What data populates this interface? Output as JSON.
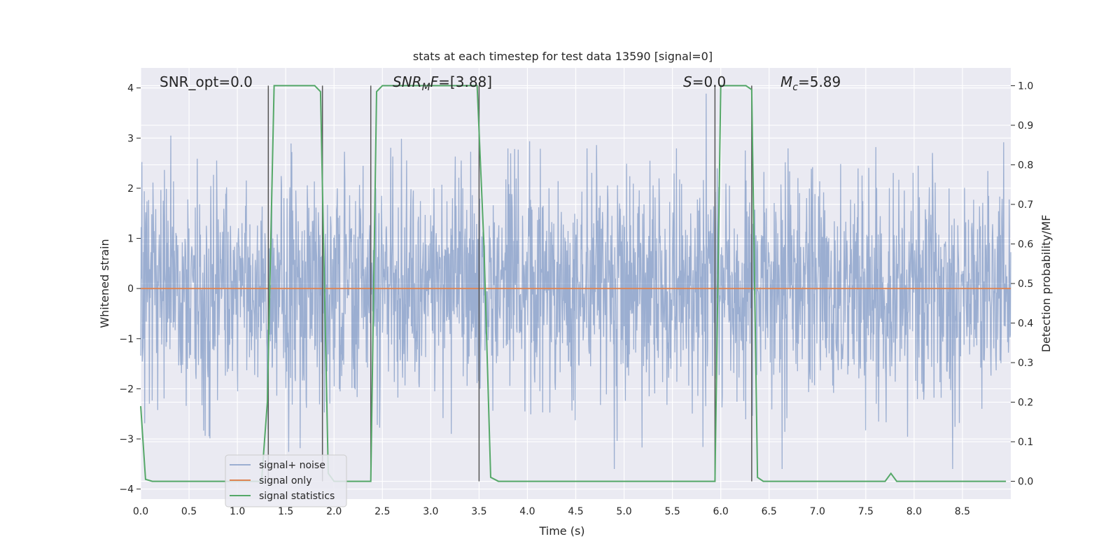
{
  "chart_data": {
    "type": "line",
    "title": "stats at each timestep for test data 13590 [signal=0]",
    "xlabel": "Time (s)",
    "ylabel_left": "Whitened strain",
    "ylabel_right": "Detection probability/MF",
    "xlim": [
      0.0,
      9.0
    ],
    "ylim_left": [
      -4.2,
      4.4
    ],
    "ylim_right": [
      -0.045,
      1.045
    ],
    "xticks": [
      "0.0",
      "0.5",
      "1.0",
      "1.5",
      "2.0",
      "2.5",
      "3.0",
      "3.5",
      "4.0",
      "4.5",
      "5.0",
      "5.5",
      "6.0",
      "6.5",
      "7.0",
      "7.5",
      "8.0",
      "8.5"
    ],
    "yticks_left": [
      "4",
      "3",
      "2",
      "1",
      "0",
      "−1",
      "−2",
      "−3",
      "−4"
    ],
    "yticks_left_values": [
      4,
      3,
      2,
      1,
      0,
      -1,
      -2,
      -3,
      -4
    ],
    "yticks_right": [
      "1.0",
      "0.9",
      "0.8",
      "0.7",
      "0.6",
      "0.5",
      "0.4",
      "0.3",
      "0.2",
      "0.1",
      "0.0"
    ],
    "yticks_right_values": [
      1.0,
      0.9,
      0.8,
      0.7,
      0.6,
      0.5,
      0.4,
      0.3,
      0.2,
      0.1,
      0.0
    ],
    "grid": true,
    "legend_position": "lower-left",
    "annotations": {
      "snr_opt": "SNR_opt=0.0",
      "snr_mf_italic": "SNR",
      "snr_mf_sub": "M",
      "snr_mf_rest_italic": "F",
      "snr_mf_value": "=[3.88]",
      "s_italic": "S",
      "s_value": "=0.0",
      "mc_italic": "M",
      "mc_sub": "c",
      "mc_value": "=5.89"
    },
    "series": [
      {
        "name": "signal+ noise",
        "color": "#4c72b0",
        "axis": "left",
        "kind": "noise",
        "description_values": "white noise, amplitude approx within [-3.6, 4.0]"
      },
      {
        "name": "signal only",
        "color": "#dd8452",
        "axis": "left",
        "x": [
          0.0,
          9.0
        ],
        "y": [
          0.0,
          0.0
        ]
      },
      {
        "name": "signal statistics",
        "color": "#55a868",
        "axis": "right",
        "x": [
          0.0,
          0.05,
          0.12,
          1.25,
          1.31,
          1.38,
          1.8,
          1.86,
          1.94,
          2.0,
          2.38,
          2.44,
          2.5,
          3.48,
          3.55,
          3.62,
          3.7,
          5.94,
          6.0,
          6.26,
          6.32,
          6.38,
          6.44,
          6.5,
          7.7,
          7.76,
          7.82,
          7.9,
          8.95
        ],
        "y": [
          0.19,
          0.005,
          0.0,
          0.0,
          0.2,
          1.0,
          1.0,
          0.985,
          0.02,
          0.0,
          0.0,
          0.985,
          1.0,
          1.0,
          0.6,
          0.01,
          0.0,
          0.0,
          1.0,
          1.0,
          0.99,
          0.01,
          0.0,
          0.0,
          0.0,
          0.02,
          0.0,
          0.0,
          0.0
        ]
      }
    ],
    "vlines": {
      "color": "#555555",
      "x": [
        1.32,
        1.88,
        2.38,
        3.5,
        5.94,
        6.32
      ]
    }
  }
}
